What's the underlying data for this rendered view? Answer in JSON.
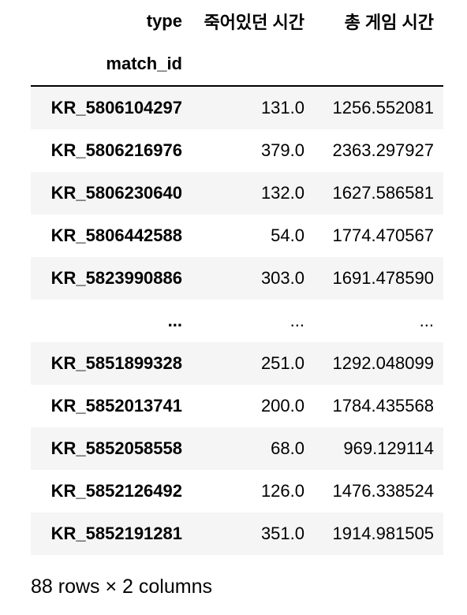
{
  "table": {
    "columns_name": "type",
    "columns": [
      "죽어있던 시간",
      "총 게임 시간"
    ],
    "index_name": "match_id",
    "rows": [
      {
        "index": "KR_5806104297",
        "values": [
          "131.0",
          "1256.552081"
        ]
      },
      {
        "index": "KR_5806216976",
        "values": [
          "379.0",
          "2363.297927"
        ]
      },
      {
        "index": "KR_5806230640",
        "values": [
          "132.0",
          "1627.586581"
        ]
      },
      {
        "index": "KR_5806442588",
        "values": [
          "54.0",
          "1774.470567"
        ]
      },
      {
        "index": "KR_5823990886",
        "values": [
          "303.0",
          "1691.478590"
        ]
      },
      {
        "index": "...",
        "values": [
          "...",
          "..."
        ]
      },
      {
        "index": "KR_5851899328",
        "values": [
          "251.0",
          "1292.048099"
        ]
      },
      {
        "index": "KR_5852013741",
        "values": [
          "200.0",
          "1784.435568"
        ]
      },
      {
        "index": "KR_5852058558",
        "values": [
          "68.0",
          "969.129114"
        ]
      },
      {
        "index": "KR_5852126492",
        "values": [
          "126.0",
          "1476.338524"
        ]
      },
      {
        "index": "KR_5852191281",
        "values": [
          "351.0",
          "1914.981505"
        ]
      }
    ]
  },
  "footer": {
    "shape": "88 rows × 2 columns"
  }
}
